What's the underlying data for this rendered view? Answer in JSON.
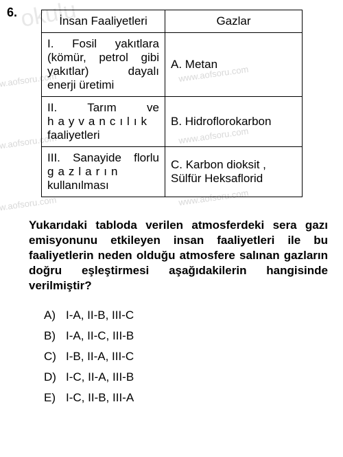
{
  "question_number": "6.",
  "watermarks": {
    "big": "okulu",
    "small": "www.aofsoru.com"
  },
  "table": {
    "headers": {
      "col1": "İnsan Faaliyetleri",
      "col2": "Gazlar"
    },
    "rows": [
      {
        "activity_lines": [
          "I. Fosil yakıtlara",
          "(kömür, petrol gibi",
          "yakıtlar) dayalı",
          "enerji üretimi"
        ],
        "gas": "A. Metan"
      },
      {
        "activity_lines_spaced": [
          "II. Tarım ve",
          "hayvancılık"
        ],
        "activity_line_plain": "faaliyetleri",
        "gas": "B. Hidroflorokarbon"
      },
      {
        "activity_lines_spaced2": [
          "III. Sanayide florlu",
          "gazların"
        ],
        "activity_line_plain2": "kullanılması",
        "gas_lines": [
          "C. Karbon dioksit ,",
          "Sülfür Heksaflorid"
        ]
      }
    ]
  },
  "question_text": "Yukarıdaki tabloda verilen atmosferdeki sera gazı emisyonunu etkileyen insan faaliyetleri ile bu faaliyetlerin neden olduğu atmosfere salınan gazların doğru eşleştirmesi aşağıdakilerin hangisinde verilmiştir?",
  "options": [
    {
      "letter": "A)",
      "text": "I-A, II-B, III-C"
    },
    {
      "letter": "B)",
      "text": "I-A, II-C, III-B"
    },
    {
      "letter": "C)",
      "text": "I-B, II-A, III-C"
    },
    {
      "letter": "D)",
      "text": "I-C, II-A, III-B"
    },
    {
      "letter": "E)",
      "text": "I-C, II-B, III-A"
    }
  ],
  "colors": {
    "text": "#000000",
    "watermark": "#d8d8d8",
    "background": "#ffffff",
    "border": "#000000"
  }
}
